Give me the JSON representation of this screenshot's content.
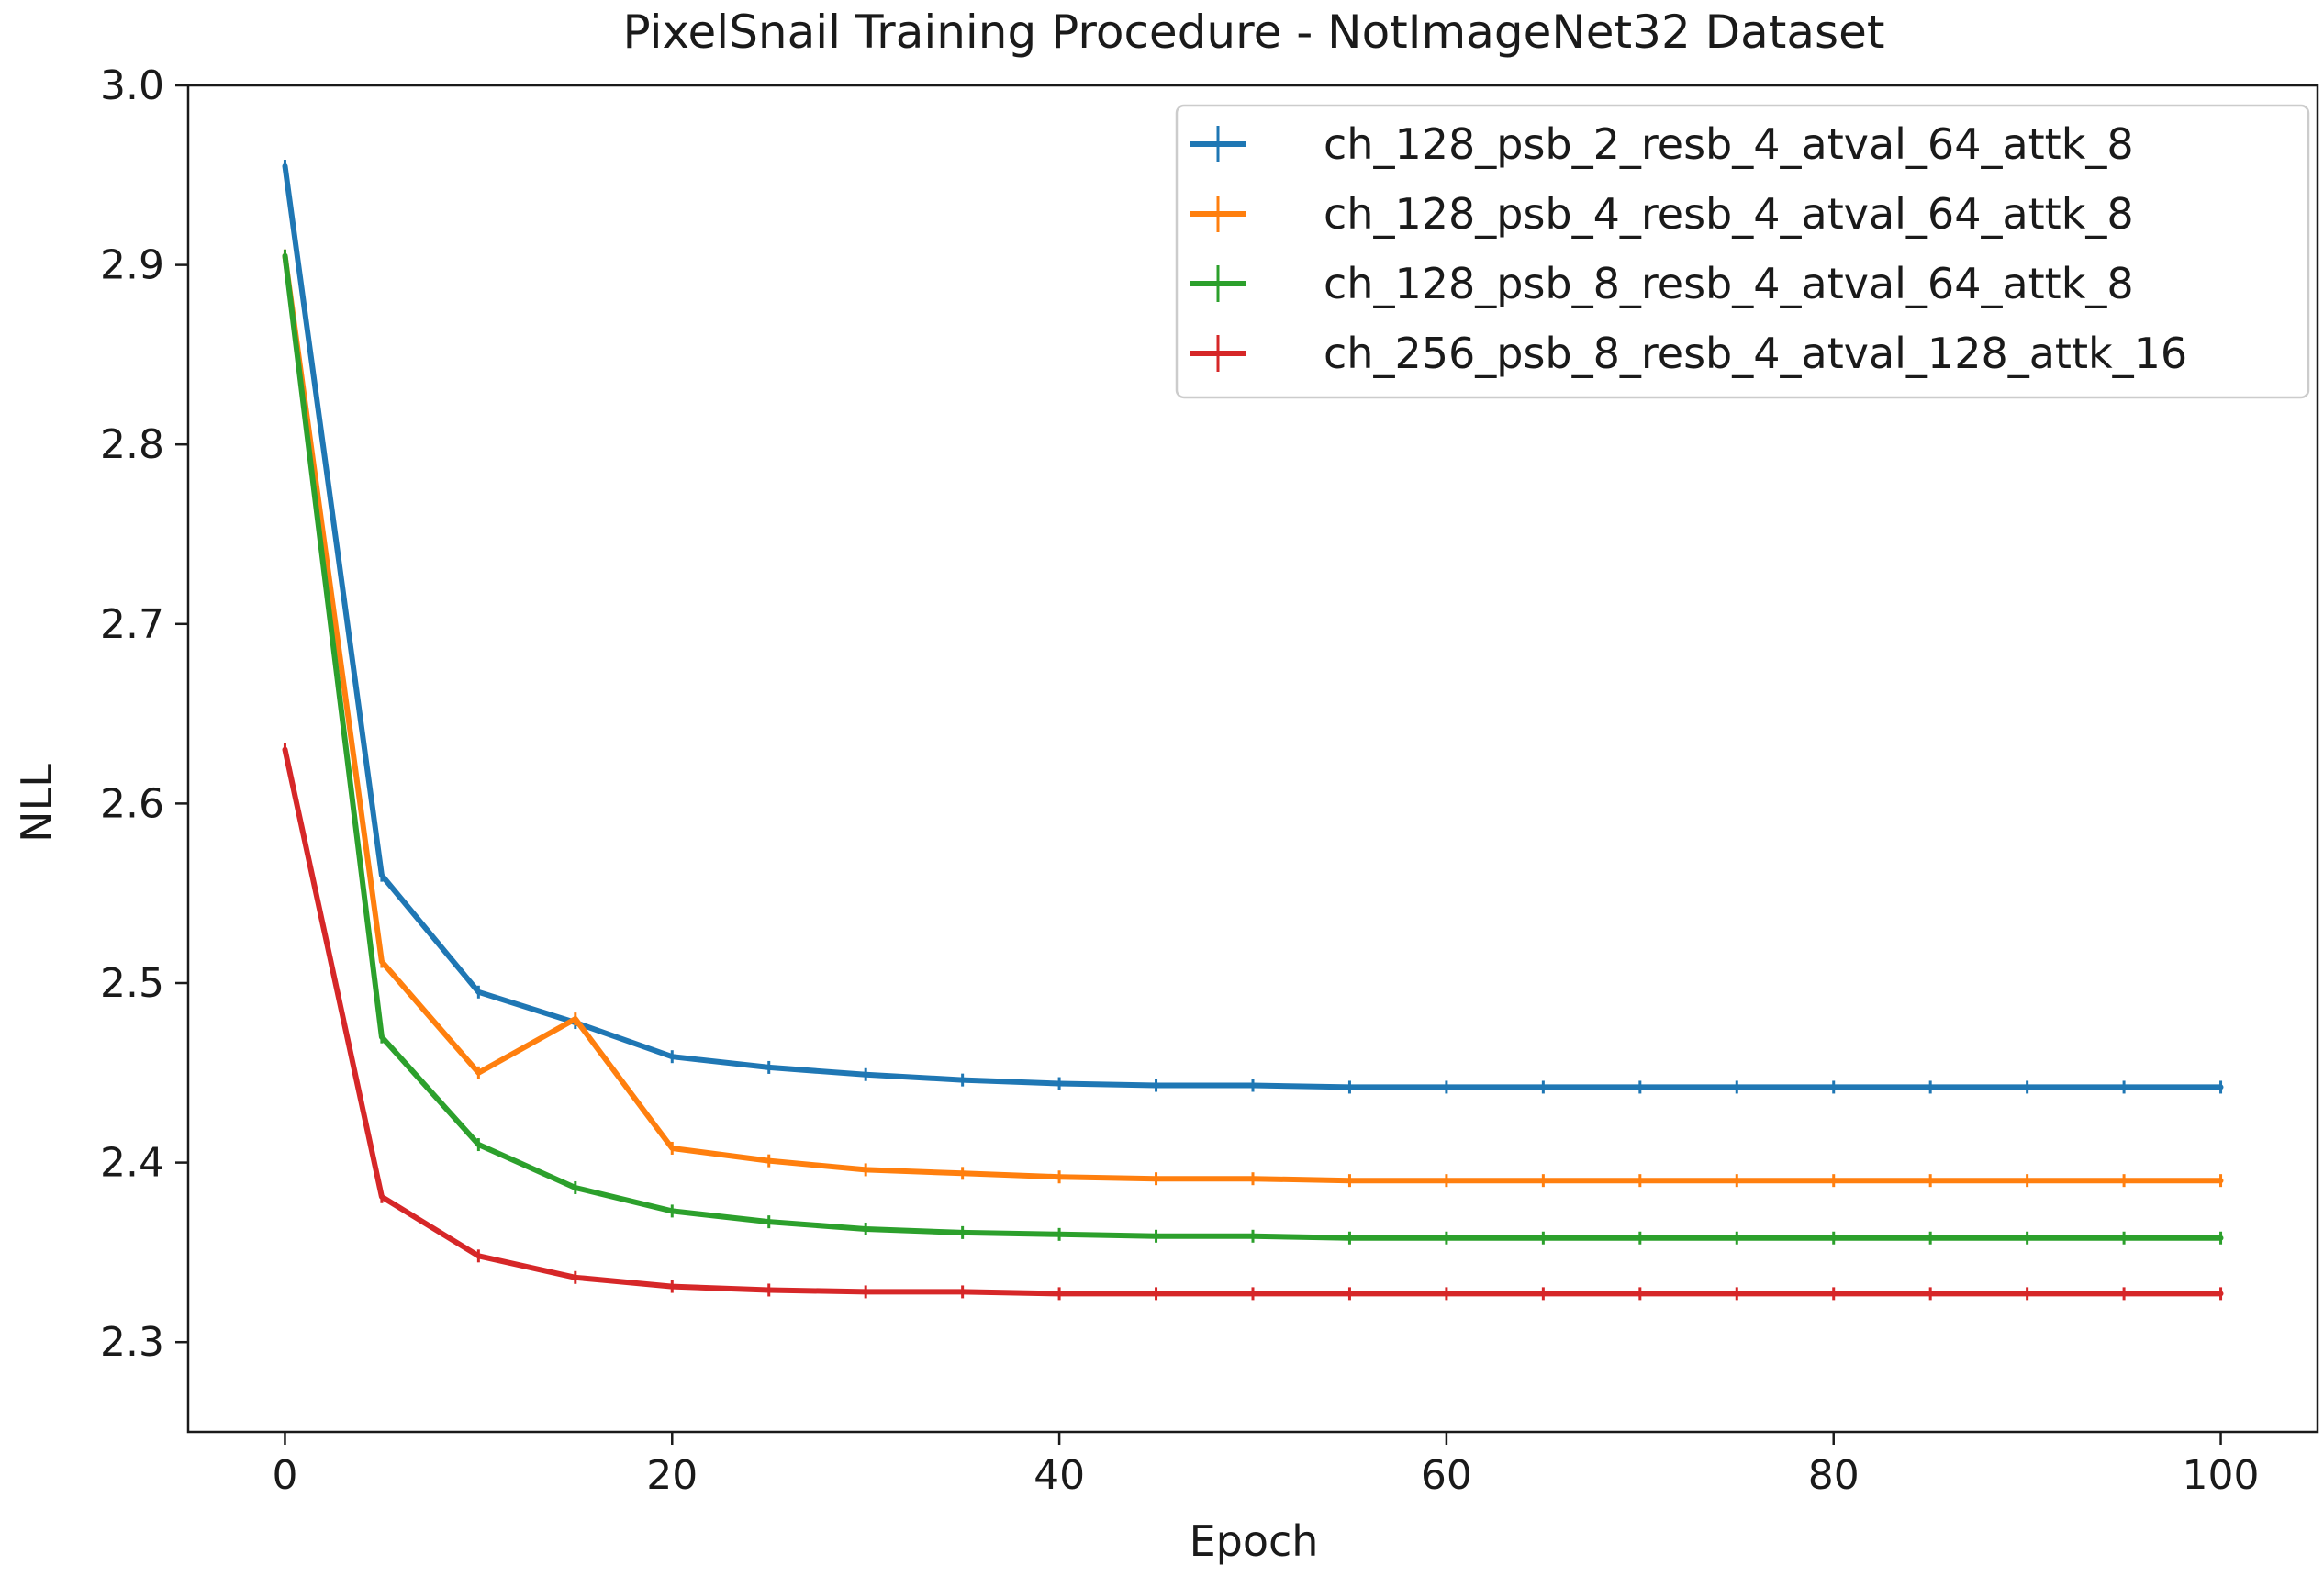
{
  "chart_data": {
    "type": "line",
    "title": "PixelSnail Training Procedure - NotImageNet32 Dataset",
    "xlabel": "Epoch",
    "ylabel": "NLL",
    "xlim": [
      -5,
      105
    ],
    "ylim": [
      2.25,
      3.0
    ],
    "x_ticks": [
      0,
      20,
      40,
      60,
      80,
      100
    ],
    "x_tick_labels": [
      "0",
      "20",
      "40",
      "60",
      "80",
      "100"
    ],
    "y_ticks": [
      2.3,
      2.4,
      2.5,
      2.6,
      2.7,
      2.8,
      2.9,
      3.0
    ],
    "y_tick_labels": [
      "2.3",
      "2.4",
      "2.5",
      "2.6",
      "2.7",
      "2.8",
      "2.9",
      "3.0"
    ],
    "grid": false,
    "legend_position": "top-right",
    "x": [
      0,
      5,
      10,
      15,
      20,
      25,
      30,
      35,
      40,
      45,
      50,
      55,
      60,
      65,
      70,
      75,
      80,
      85,
      90,
      95,
      100
    ],
    "series": [
      {
        "name": "ch_128_psb_2_resb_4_atval_64_attk_8",
        "color": "#1f77b4",
        "values": [
          2.955,
          2.56,
          2.495,
          2.478,
          2.459,
          2.453,
          2.449,
          2.446,
          2.444,
          2.443,
          2.443,
          2.442,
          2.442,
          2.442,
          2.442,
          2.442,
          2.442,
          2.442,
          2.442,
          2.442,
          2.442
        ]
      },
      {
        "name": "ch_128_psb_4_resb_4_atval_64_attk_8",
        "color": "#ff7f0e",
        "values": [
          2.905,
          2.512,
          2.45,
          2.48,
          2.408,
          2.401,
          2.396,
          2.394,
          2.392,
          2.391,
          2.391,
          2.39,
          2.39,
          2.39,
          2.39,
          2.39,
          2.39,
          2.39,
          2.39,
          2.39,
          2.39
        ]
      },
      {
        "name": "ch_128_psb_8_resb_4_atval_64_attk_8",
        "color": "#2ca02c",
        "values": [
          2.905,
          2.47,
          2.41,
          2.386,
          2.373,
          2.367,
          2.363,
          2.361,
          2.36,
          2.359,
          2.359,
          2.358,
          2.358,
          2.358,
          2.358,
          2.358,
          2.358,
          2.358,
          2.358,
          2.358,
          2.358
        ]
      },
      {
        "name": "ch_256_psb_8_resb_4_atval_128_attk_16",
        "color": "#d62728",
        "values": [
          2.63,
          2.381,
          2.348,
          2.336,
          2.331,
          2.329,
          2.328,
          2.328,
          2.327,
          2.327,
          2.327,
          2.327,
          2.327,
          2.327,
          2.327,
          2.327,
          2.327,
          2.327,
          2.327,
          2.327,
          2.327
        ]
      }
    ]
  }
}
